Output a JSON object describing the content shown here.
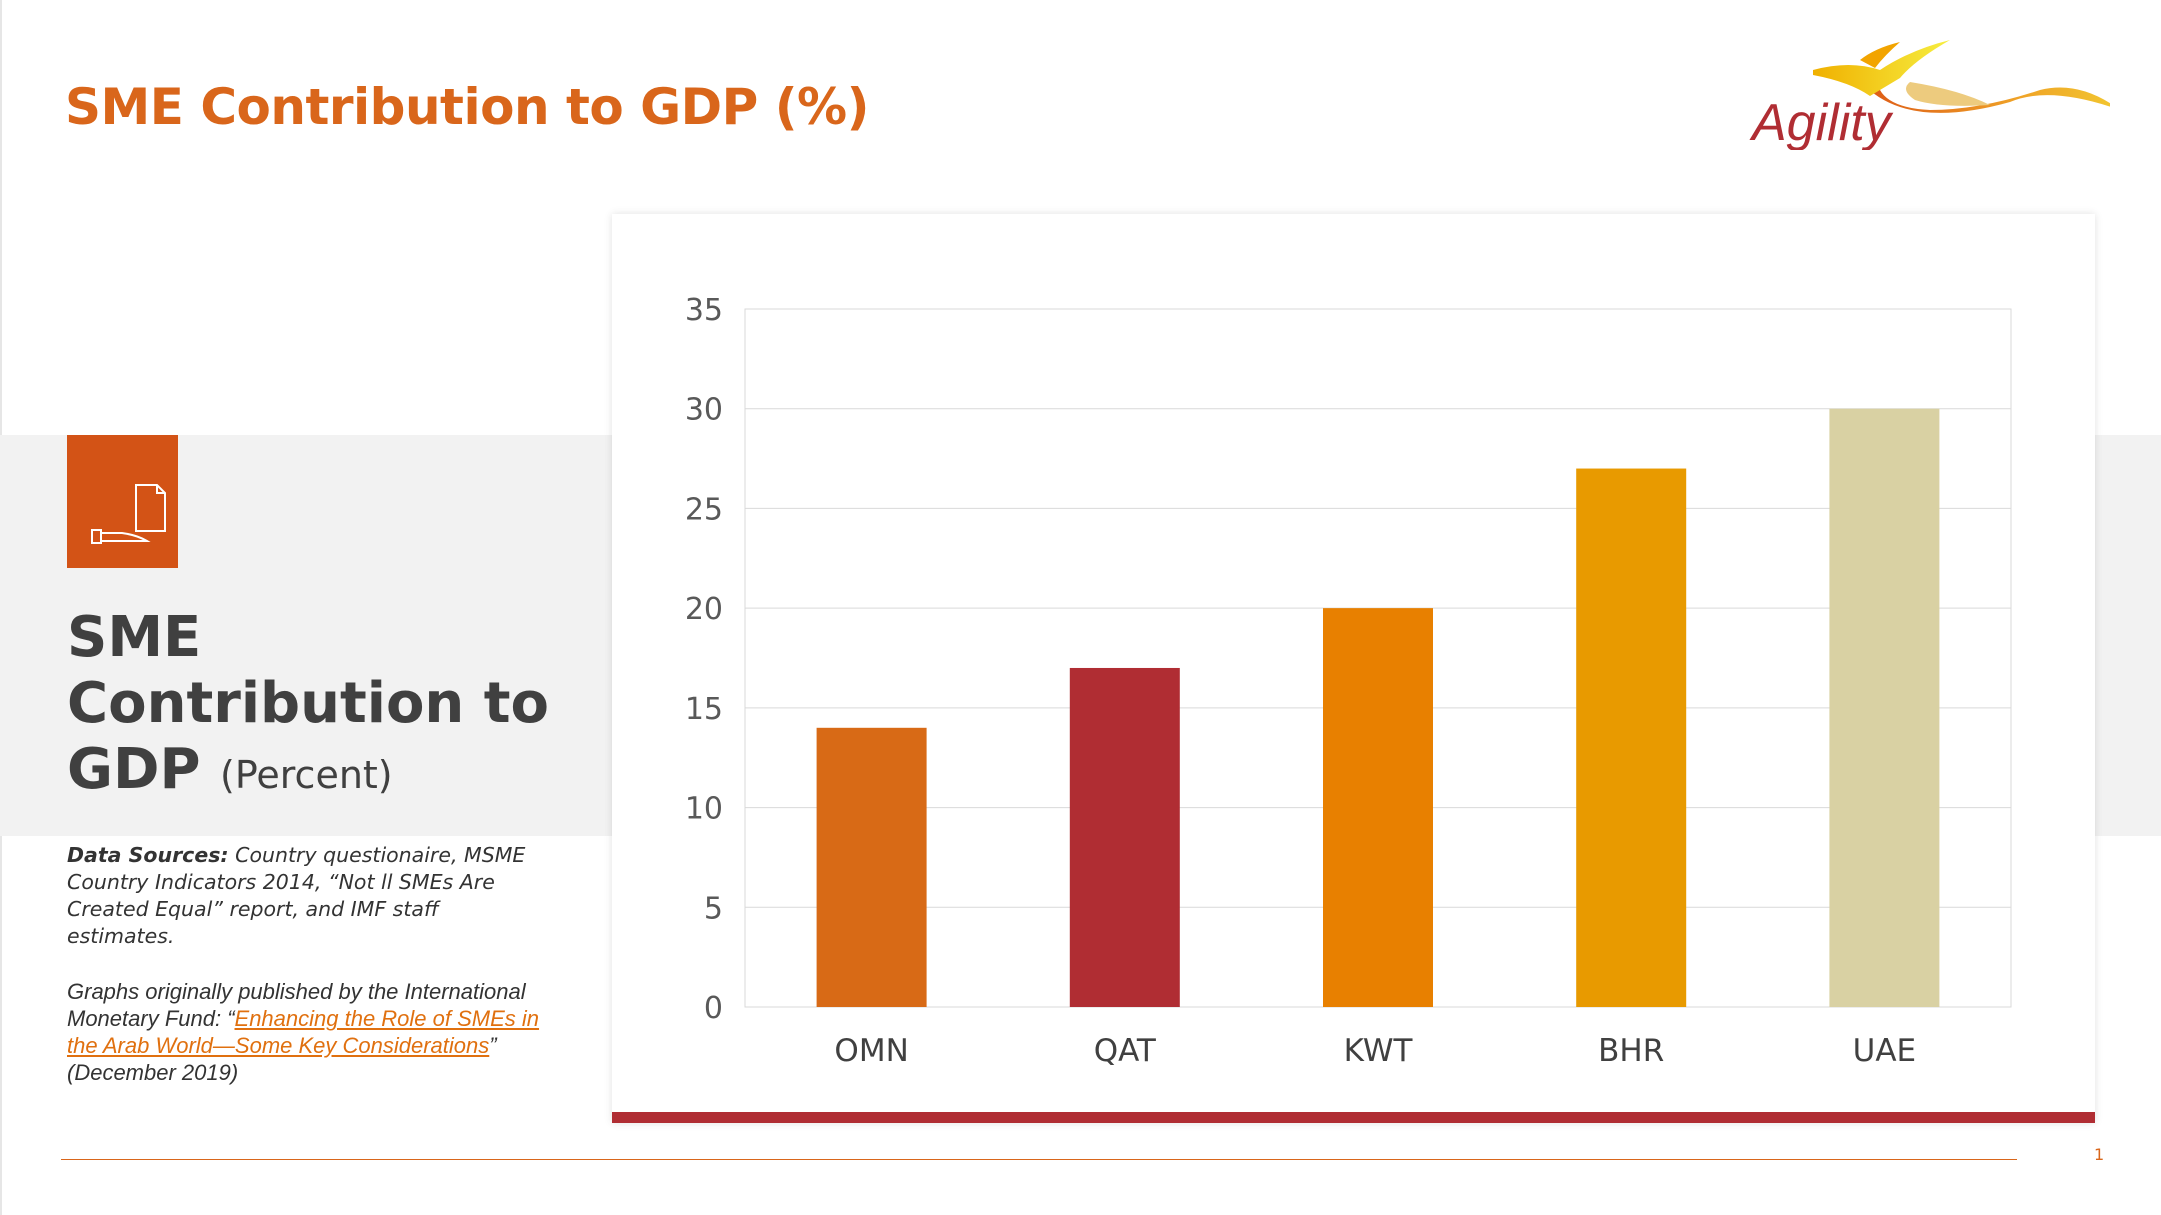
{
  "slide": {
    "title": "SME Contribution to GDP (%)",
    "page_number": "1",
    "logo_text": "Agility"
  },
  "sidebar": {
    "icon": "document-hand-icon",
    "heading": "SME Contribution to GDP",
    "heading_sub": "(Percent)",
    "sources_label": "Data Sources:",
    "sources_text": " Country questionaire, MSME Country Indicators 2014, “Not ll SMEs Are Created Equal” report, and IMF staff estimates.",
    "graphs_prefix": "Graphs originally published by the International Monetary Fund: “",
    "graphs_link": "Enhancing the Role of SMEs in the Arab World—Some Key Considerations",
    "graphs_suffix": "” (December 2019)"
  },
  "colors": {
    "accent": "#D9661B",
    "icon_box": "#D35316",
    "card_bottom_bar": "#B02D33"
  },
  "chart_data": {
    "type": "bar",
    "categories": [
      "OMN",
      "QAT",
      "KWT",
      "BHR",
      "UAE"
    ],
    "values": [
      14,
      17,
      20,
      27,
      30
    ],
    "bar_colors": [
      "#D86A16",
      "#B02D33",
      "#E88000",
      "#E89A00",
      "#D9D1A3"
    ],
    "title": "",
    "xlabel": "",
    "ylabel": "",
    "ylim": [
      0,
      35
    ],
    "yticks": [
      0,
      5,
      10,
      15,
      20,
      25,
      30,
      35
    ],
    "grid": true,
    "legend": "none"
  }
}
